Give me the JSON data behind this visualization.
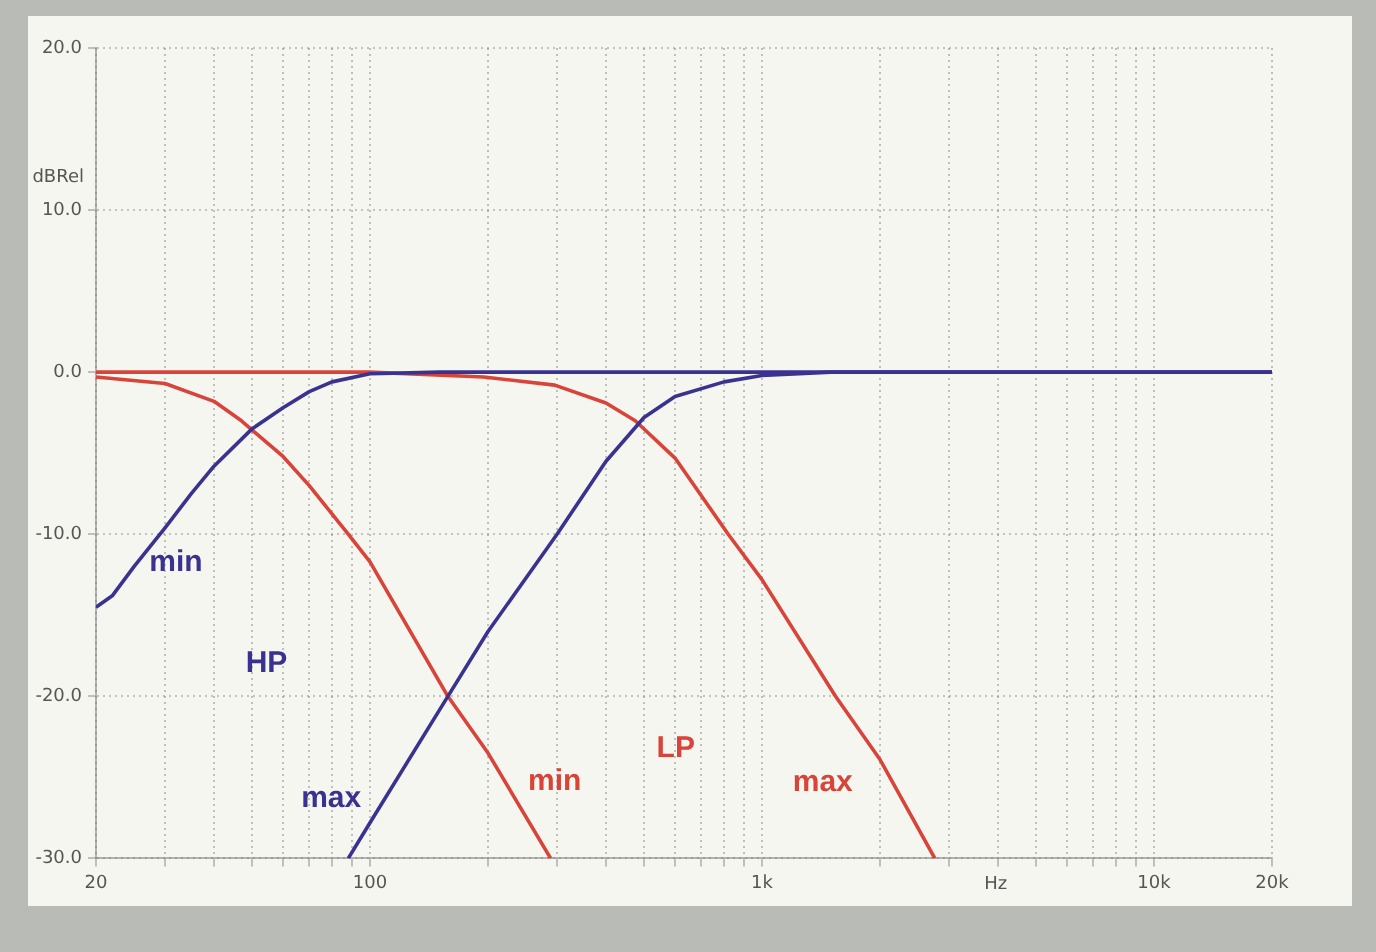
{
  "chart_data": {
    "type": "line",
    "xlabel": "Hz",
    "ylabel": "dBRel",
    "log": "x",
    "grid": true,
    "legend": false,
    "marker": "none",
    "line_style": "solid",
    "xlim": [
      20,
      20000
    ],
    "ylim": [
      -30,
      20
    ],
    "xticks": [
      {
        "value": 20,
        "label": "20"
      },
      {
        "value": 30,
        "label": null
      },
      {
        "value": 40,
        "label": null
      },
      {
        "value": 50,
        "label": null
      },
      {
        "value": 60,
        "label": null
      },
      {
        "value": 70,
        "label": null
      },
      {
        "value": 80,
        "label": null
      },
      {
        "value": 90,
        "label": null
      },
      {
        "value": 100,
        "label": "100"
      },
      {
        "value": 200,
        "label": null
      },
      {
        "value": 300,
        "label": null
      },
      {
        "value": 400,
        "label": null
      },
      {
        "value": 500,
        "label": null
      },
      {
        "value": 600,
        "label": null
      },
      {
        "value": 700,
        "label": null
      },
      {
        "value": 800,
        "label": null
      },
      {
        "value": 900,
        "label": null
      },
      {
        "value": 1000,
        "label": "1k"
      },
      {
        "value": 2000,
        "label": null
      },
      {
        "value": 3000,
        "label": null
      },
      {
        "value": 4000,
        "label": null
      },
      {
        "value": 5000,
        "label": null
      },
      {
        "value": 6000,
        "label": null
      },
      {
        "value": 7000,
        "label": null
      },
      {
        "value": 8000,
        "label": null
      },
      {
        "value": 9000,
        "label": null
      },
      {
        "value": 10000,
        "label": "10k"
      },
      {
        "value": 20000,
        "label": "20k"
      }
    ],
    "yticks": [
      {
        "value": -30,
        "label": "-30.0"
      },
      {
        "value": -20,
        "label": "-20.0"
      },
      {
        "value": -10,
        "label": "-10.0"
      },
      {
        "value": 0,
        "label": "0.0"
      },
      {
        "value": 10,
        "label": "10.0"
      },
      {
        "value": 20,
        "label": "20.0"
      }
    ],
    "series": [
      {
        "name": "min",
        "color": "#3a3290",
        "x": [
          20,
          22,
          25,
          30,
          35,
          40,
          50,
          60,
          70,
          80,
          100,
          150,
          20000
        ],
        "values": [
          -14.5,
          -13.8,
          -12,
          -9.6,
          -7.5,
          -5.8,
          -3.5,
          -2.2,
          -1.2,
          -0.6,
          -0.1,
          0,
          0
        ]
      },
      {
        "name": "max",
        "color": "#3a3290",
        "x": [
          88,
          100,
          158,
          200,
          300,
          400,
          500,
          600,
          800,
          1000,
          1500,
          20000
        ],
        "values": [
          -30,
          -27.8,
          -20,
          -16,
          -10,
          -5.5,
          -2.8,
          -1.5,
          -0.6,
          -0.2,
          0,
          0
        ]
      },
      {
        "name": "min",
        "color": "#d8443a",
        "x": [
          20,
          30,
          40,
          47,
          60,
          70,
          88,
          100,
          158,
          200,
          289
        ],
        "values": [
          -0.3,
          -0.7,
          -1.8,
          -3,
          -5.2,
          -7,
          -10,
          -11.7,
          -20,
          -23.5,
          -30
        ]
      },
      {
        "name": "max",
        "color": "#d8443a",
        "x": [
          20,
          100,
          195,
          296,
          400,
          475,
          600,
          820,
          1000,
          1540,
          2000,
          2760
        ],
        "values": [
          0,
          0,
          -0.3,
          -0.8,
          -1.9,
          -3,
          -5.3,
          -10,
          -12.8,
          -20,
          -23.9,
          -30
        ]
      }
    ],
    "annotations": [
      "HP",
      "LP"
    ]
  }
}
